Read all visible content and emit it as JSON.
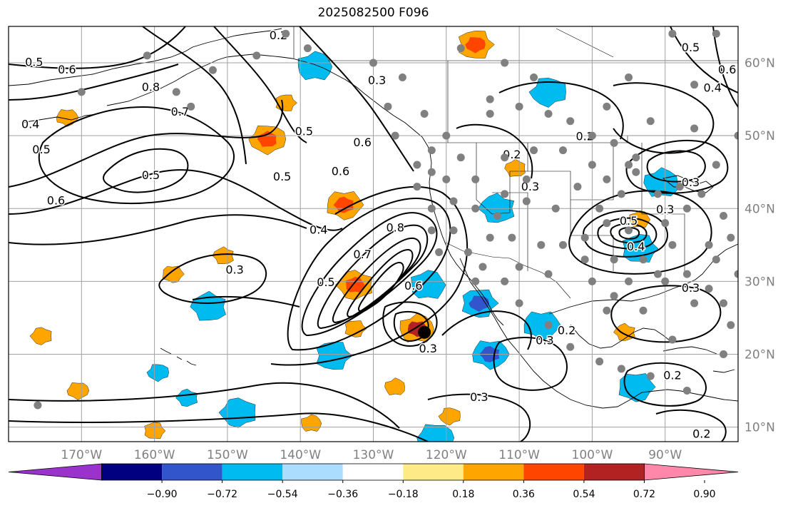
{
  "title": "2025082500 F096",
  "map": {
    "lon_ticks": [
      -170,
      -160,
      -150,
      -140,
      -130,
      -120,
      -110,
      -100,
      -90
    ],
    "lon_labels": [
      "170°W",
      "160°W",
      "150°W",
      "140°W",
      "130°W",
      "120°W",
      "110°W",
      "100°W",
      "90°W"
    ],
    "lat_ticks": [
      10,
      20,
      30,
      40,
      50,
      60
    ],
    "lat_labels": [
      "10°N",
      "20°N",
      "30°N",
      "40°N",
      "50°N",
      "60°N"
    ],
    "grid": true,
    "colors": {
      "contour": "#000000",
      "grid": "#a0a0a0",
      "coast": "#000000",
      "station": "#808080",
      "center_marker": "#000000"
    },
    "positive_features": [
      {
        "lon": -124,
        "lat": 23.5,
        "level": 0.72
      },
      {
        "lon": -116,
        "lat": 62.5,
        "level": 0.54
      },
      {
        "lon": -134,
        "lat": 40.5,
        "level": 0.54
      },
      {
        "lon": -144.5,
        "lat": 49.5,
        "level": 0.54
      },
      {
        "lon": -132.5,
        "lat": 29.5,
        "level": 0.54
      },
      {
        "lon": -110.5,
        "lat": 45.5,
        "level": 0.36
      },
      {
        "lon": -93.5,
        "lat": 38.5,
        "level": 0.36
      },
      {
        "lon": -132.5,
        "lat": 23.5,
        "level": 0.36
      },
      {
        "lon": -172,
        "lat": 52.5,
        "level": 0.36
      },
      {
        "lon": -119.5,
        "lat": 11.5,
        "level": 0.36
      },
      {
        "lon": -95.5,
        "lat": 23.0,
        "level": 0.36
      },
      {
        "lon": -127,
        "lat": 15.5,
        "level": 0.36
      },
      {
        "lon": -160,
        "lat": 9.5,
        "level": 0.36
      },
      {
        "lon": -157.5,
        "lat": 31.0,
        "level": 0.36
      },
      {
        "lon": -170.5,
        "lat": 15.0,
        "level": 0.36
      },
      {
        "lon": -175.5,
        "lat": 22.5,
        "level": 0.36
      },
      {
        "lon": -150.5,
        "lat": 33.5,
        "level": 0.36
      },
      {
        "lon": -138.5,
        "lat": 10.5,
        "level": 0.36
      },
      {
        "lon": -142,
        "lat": 54.5,
        "level": 0.36
      }
    ],
    "negative_features": [
      {
        "lon": -122.5,
        "lat": 29.5,
        "level": -0.54
      },
      {
        "lon": -115.5,
        "lat": 27.0,
        "level": -0.72
      },
      {
        "lon": -114,
        "lat": 20.0,
        "level": -0.72
      },
      {
        "lon": -106,
        "lat": 56.0,
        "level": -0.54
      },
      {
        "lon": -113,
        "lat": 40.0,
        "level": -0.54
      },
      {
        "lon": -90.5,
        "lat": 43.5,
        "level": -0.54
      },
      {
        "lon": -93.5,
        "lat": 34.5,
        "level": -0.54
      },
      {
        "lon": -94,
        "lat": 15.5,
        "level": -0.54
      },
      {
        "lon": -121.5,
        "lat": 8.5,
        "level": -0.54
      },
      {
        "lon": -148.5,
        "lat": 12.0,
        "level": -0.54
      },
      {
        "lon": -152.5,
        "lat": 26.5,
        "level": -0.54
      },
      {
        "lon": -138,
        "lat": 59.5,
        "level": -0.54
      },
      {
        "lon": -135.5,
        "lat": 19.8,
        "level": -0.54
      },
      {
        "lon": -107,
        "lat": 24.0,
        "level": -0.54
      },
      {
        "lon": -159.5,
        "lat": 17.5,
        "level": -0.36
      },
      {
        "lon": -155.5,
        "lat": 14.0,
        "level": -0.36
      }
    ],
    "cyclone_center": {
      "lon": -123,
      "lat": 23
    },
    "contour_labels": [
      {
        "text": "0.2",
        "lon": -143,
        "lat": 63.7
      },
      {
        "text": "0.5",
        "lon": -176.5,
        "lat": 60.0
      },
      {
        "text": "0.6",
        "lon": -172,
        "lat": 59.0
      },
      {
        "text": "0.8",
        "lon": -160.5,
        "lat": 56.6
      },
      {
        "text": "0.7",
        "lon": -156.5,
        "lat": 53.2
      },
      {
        "text": "0.4",
        "lon": -177,
        "lat": 51.5
      },
      {
        "text": "0.5",
        "lon": -175.5,
        "lat": 48.0
      },
      {
        "text": "0.5",
        "lon": -160.5,
        "lat": 44.5
      },
      {
        "text": "0.6",
        "lon": -173.5,
        "lat": 41.0
      },
      {
        "text": "0.5",
        "lon": -142.5,
        "lat": 44.3
      },
      {
        "text": "0.5",
        "lon": -139.5,
        "lat": 50.5
      },
      {
        "text": "0.3",
        "lon": -129.5,
        "lat": 57.5
      },
      {
        "text": "0.6",
        "lon": -131.5,
        "lat": 49.0
      },
      {
        "text": "0.6",
        "lon": -134.5,
        "lat": 45.0
      },
      {
        "text": "0.4",
        "lon": -137.5,
        "lat": 37.0
      },
      {
        "text": "0.3",
        "lon": -149,
        "lat": 31.5
      },
      {
        "text": "0.5",
        "lon": -136.5,
        "lat": 29.8
      },
      {
        "text": "0.7",
        "lon": -131.5,
        "lat": 33.6
      },
      {
        "text": "0.8",
        "lon": -127,
        "lat": 37.3
      },
      {
        "text": "0.6",
        "lon": -124.5,
        "lat": 29.3
      },
      {
        "text": "0.3",
        "lon": -122.5,
        "lat": 20.7
      },
      {
        "text": "0.2",
        "lon": -111,
        "lat": 47.3
      },
      {
        "text": "0.3",
        "lon": -108.5,
        "lat": 42.9
      },
      {
        "text": "0.2",
        "lon": -101,
        "lat": 49.8
      },
      {
        "text": "0.5",
        "lon": -95,
        "lat": 38.2
      },
      {
        "text": "0.3",
        "lon": -90,
        "lat": 39.8
      },
      {
        "text": "0.4",
        "lon": -94,
        "lat": 34.7
      },
      {
        "text": "0.3",
        "lon": -86.5,
        "lat": 29.0
      },
      {
        "text": "0.3",
        "lon": -86.5,
        "lat": 43.5
      },
      {
        "text": "0.2",
        "lon": -103.5,
        "lat": 23.2
      },
      {
        "text": "0.3",
        "lon": -106.5,
        "lat": 21.8
      },
      {
        "text": "0.3",
        "lon": -115.5,
        "lat": 14.0
      },
      {
        "text": "0.2",
        "lon": -89,
        "lat": 17.0
      },
      {
        "text": "0.2",
        "lon": -85,
        "lat": 9.0
      },
      {
        "text": "0.5",
        "lon": -86.5,
        "lat": 62.0
      },
      {
        "text": "0.6",
        "lon": -81.5,
        "lat": 59.0
      },
      {
        "text": "0.4",
        "lon": -83.5,
        "lat": 56.5
      }
    ],
    "stations": [
      [
        -170,
        56
      ],
      [
        -161,
        61
      ],
      [
        -157,
        56
      ],
      [
        -146,
        61
      ],
      [
        -142,
        64
      ],
      [
        -139,
        62
      ],
      [
        -152,
        59
      ],
      [
        -155,
        54
      ],
      [
        -130,
        60
      ],
      [
        -118,
        62
      ],
      [
        -112,
        60
      ],
      [
        -126,
        58
      ],
      [
        -123,
        53
      ],
      [
        -120,
        50
      ],
      [
        -114,
        55
      ],
      [
        -108,
        58
      ],
      [
        -106,
        53
      ],
      [
        -110,
        54
      ],
      [
        -114,
        53
      ],
      [
        -103,
        52
      ],
      [
        -98,
        54
      ],
      [
        -100,
        50
      ],
      [
        -97,
        49
      ],
      [
        -95,
        58
      ],
      [
        -92,
        52
      ],
      [
        -86,
        51
      ],
      [
        -86,
        57
      ],
      [
        -89,
        64
      ],
      [
        -83,
        64
      ],
      [
        -80,
        50
      ],
      [
        -94,
        47
      ],
      [
        -100,
        46
      ],
      [
        -104,
        48
      ],
      [
        -108,
        48
      ],
      [
        -112,
        47
      ],
      [
        -118,
        47
      ],
      [
        -120,
        44
      ],
      [
        -122,
        45
      ],
      [
        -122,
        48
      ],
      [
        -124,
        43
      ],
      [
        -119,
        41
      ],
      [
        -116,
        44
      ],
      [
        -112,
        42
      ],
      [
        -109,
        41
      ],
      [
        -105,
        40
      ],
      [
        -102,
        43
      ],
      [
        -98,
        44
      ],
      [
        -96,
        42
      ],
      [
        -94,
        45
      ],
      [
        -91,
        42
      ],
      [
        -88,
        43
      ],
      [
        -85,
        42
      ],
      [
        -82,
        39
      ],
      [
        -87,
        40
      ],
      [
        -90,
        38
      ],
      [
        -95,
        37
      ],
      [
        -98,
        38
      ],
      [
        -101,
        36
      ],
      [
        -104,
        35
      ],
      [
        -107,
        35
      ],
      [
        -111,
        36
      ],
      [
        -114,
        36
      ],
      [
        -117,
        34
      ],
      [
        -119,
        37
      ],
      [
        -122,
        37
      ],
      [
        -121,
        34
      ],
      [
        -115,
        32
      ],
      [
        -110,
        32
      ],
      [
        -106,
        31
      ],
      [
        -101,
        33
      ],
      [
        -97,
        33
      ],
      [
        -95,
        30
      ],
      [
        -91,
        31
      ],
      [
        -87,
        31
      ],
      [
        -83,
        33
      ],
      [
        -81,
        36
      ],
      [
        -84,
        35
      ],
      [
        -89,
        35
      ],
      [
        -93,
        33
      ],
      [
        -100,
        30
      ],
      [
        -97,
        28
      ],
      [
        -93,
        26
      ],
      [
        -90,
        30
      ],
      [
        -86,
        27
      ],
      [
        -82,
        27
      ],
      [
        -81,
        24
      ],
      [
        -80,
        31
      ],
      [
        -84,
        29
      ],
      [
        -98,
        26
      ],
      [
        -89,
        22
      ],
      [
        -110,
        27
      ],
      [
        -112,
        30
      ],
      [
        -116,
        30
      ],
      [
        -106,
        24
      ],
      [
        -103,
        21
      ],
      [
        -99,
        19
      ],
      [
        -96,
        18
      ],
      [
        -92,
        17
      ],
      [
        -87,
        15
      ],
      [
        -82,
        20
      ],
      [
        -79,
        22
      ],
      [
        -176,
        13
      ],
      [
        -95,
        46
      ],
      [
        -83,
        46
      ],
      [
        -99,
        40
      ],
      [
        -109,
        44
      ],
      [
        -116,
        40
      ],
      [
        -113,
        39
      ],
      [
        -122,
        40
      ],
      [
        -124,
        46
      ],
      [
        -127,
        50
      ],
      [
        -128,
        54
      ]
    ]
  },
  "colorbar": {
    "tick_labels": [
      "−0.90",
      "−0.72",
      "−0.54",
      "−0.36",
      "−0.18",
      "0.18",
      "0.36",
      "0.54",
      "0.72",
      "0.90"
    ],
    "ticks": [
      -0.9,
      -0.72,
      -0.54,
      -0.36,
      -0.18,
      0.18,
      0.36,
      0.54,
      0.72,
      0.9
    ],
    "colors": [
      "#9933cc",
      "#000080",
      "#3355cc",
      "#00bbf0",
      "#aaddff",
      "#ffffff",
      "#ffea88",
      "#ffa500",
      "#ff4500",
      "#b22222",
      "#ff88aa"
    ]
  }
}
